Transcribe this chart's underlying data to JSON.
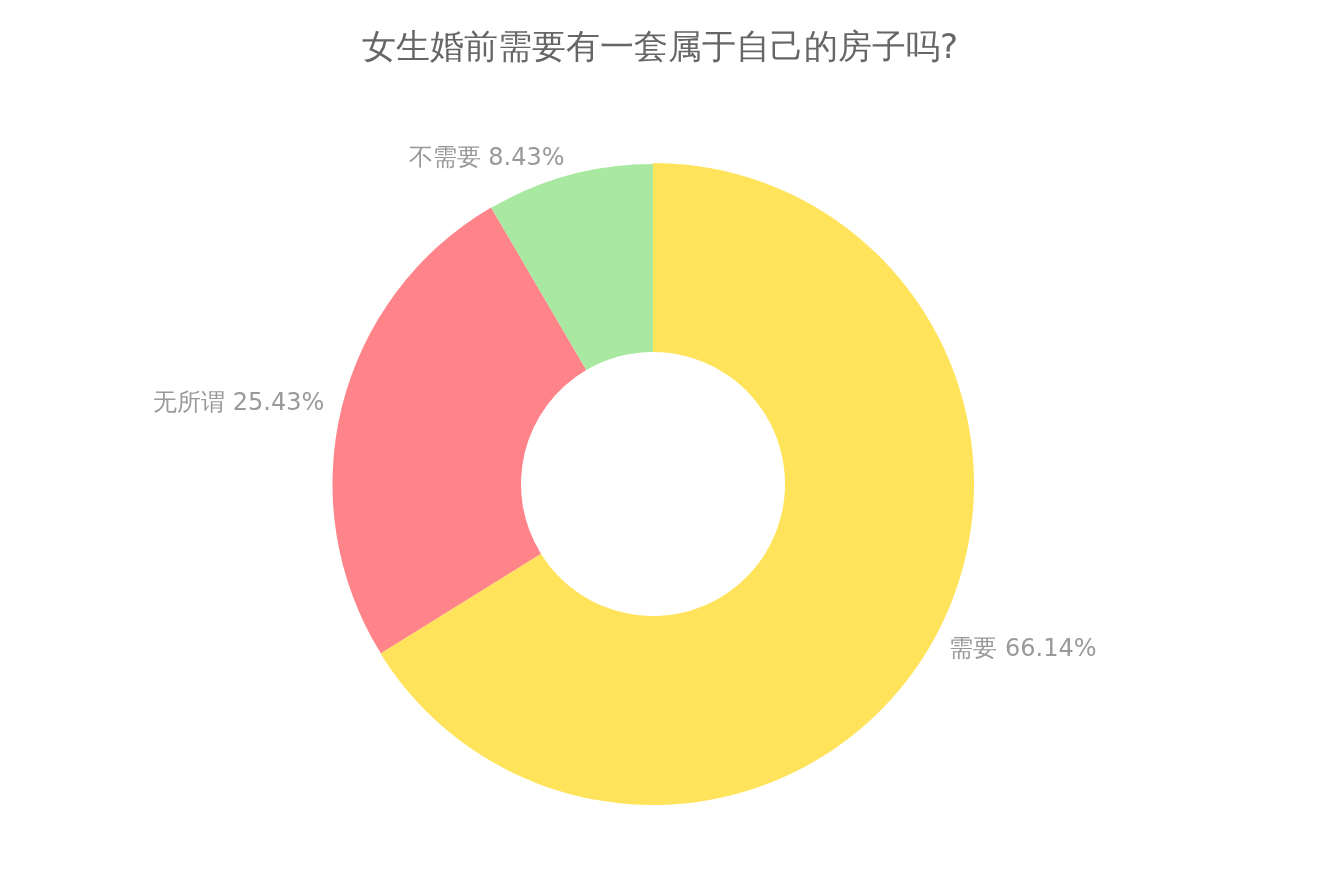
{
  "chart_data": {
    "type": "donut",
    "title": "女生婚前需要有一套属于自己的房子吗?",
    "categories": [
      "需要",
      "无所谓",
      "不需要"
    ],
    "values": [
      66.14,
      25.43,
      8.43
    ],
    "colors": [
      "#ffe35a",
      "#ff8489",
      "#a8e8a0"
    ],
    "value_labels": [
      "66.14%",
      "25.43%",
      "8.43%"
    ]
  }
}
